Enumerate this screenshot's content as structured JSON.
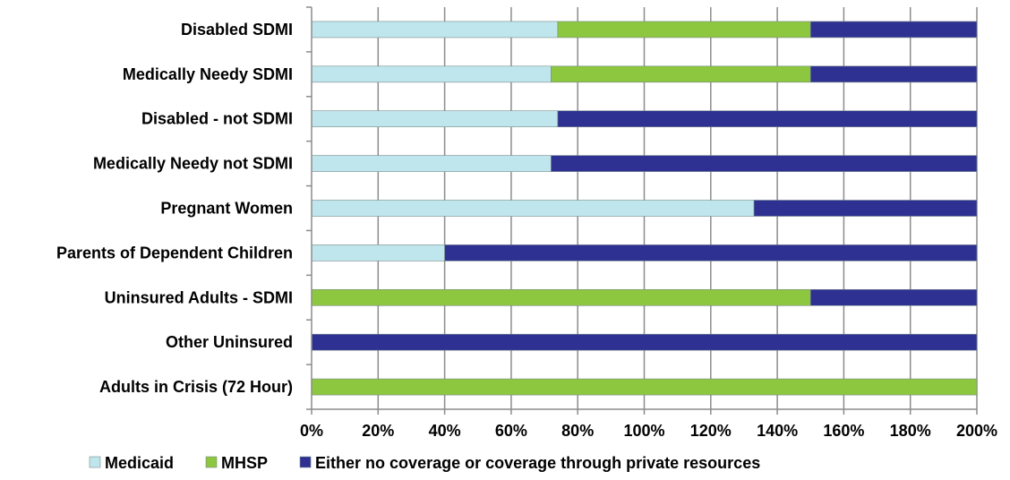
{
  "chart_data": {
    "type": "bar",
    "orientation": "horizontal",
    "stacked": true,
    "title": "",
    "xlabel": "",
    "ylabel": "",
    "categories": [
      "Disabled SDMI",
      "Medically Needy SDMI",
      "Disabled - not SDMI",
      "Medically Needy not SDMI",
      "Pregnant Women",
      "Parents of Dependent Children",
      "Uninsured Adults  - SDMI",
      "Other Uninsured",
      "Adults in Crisis (72 Hour)"
    ],
    "series": [
      {
        "name": "Medicaid",
        "color": "#BFE6EC",
        "values": [
          74,
          72,
          74,
          72,
          133,
          40,
          0,
          0,
          0
        ]
      },
      {
        "name": "MHSP",
        "color": "#8DC63F",
        "values": [
          76,
          78,
          0,
          0,
          0,
          0,
          150,
          0,
          200
        ]
      },
      {
        "name": "Either no coverage or coverage through private resources",
        "color": "#2E3192",
        "values": [
          50,
          50,
          126,
          128,
          67,
          160,
          50,
          200,
          0
        ]
      }
    ],
    "xlim": [
      0,
      200
    ],
    "xticks": [
      "0%",
      "20%",
      "40%",
      "60%",
      "80%",
      "100%",
      "120%",
      "140%",
      "160%",
      "180%",
      "200%"
    ],
    "grid": true,
    "legend_position": "bottom"
  }
}
